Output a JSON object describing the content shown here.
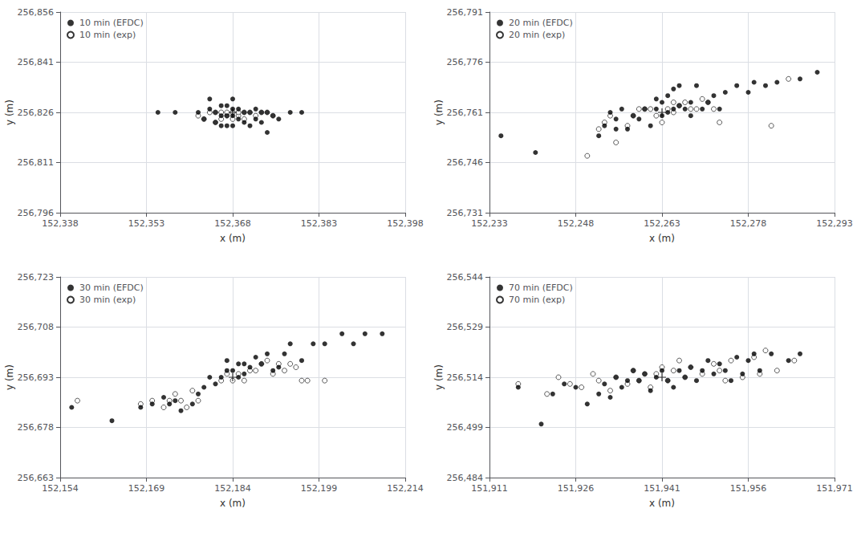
{
  "chart_data": [
    {
      "type": "scatter",
      "xlabel": "x (m)",
      "ylabel": "y (m)",
      "grid": true,
      "legend": "upper left",
      "xlim": [
        152338,
        152398
      ],
      "ylim": [
        256796,
        256856
      ],
      "xticks": [
        {
          "value": 152338,
          "label": "152,338"
        },
        {
          "value": 152353,
          "label": "152,353"
        },
        {
          "value": 152368,
          "label": "152,368"
        },
        {
          "value": 152383,
          "label": "152,383"
        },
        {
          "value": 152398,
          "label": "152,398"
        }
      ],
      "yticks": [
        {
          "value": 256796,
          "label": "256,796"
        },
        {
          "value": 256811,
          "label": "256,811"
        },
        {
          "value": 256826,
          "label": "256,826"
        },
        {
          "value": 256841,
          "label": "256,841"
        },
        {
          "value": 256856,
          "label": "256,856"
        }
      ],
      "series": [
        {
          "name": "10 min (EFDC)",
          "color": "#000000",
          "marker": "circle",
          "x": [
            152355,
            152358,
            152362,
            152363,
            152364,
            152364,
            152365,
            152365,
            152366,
            152366,
            152366,
            152367,
            152367,
            152367,
            152368,
            152368,
            152368,
            152368,
            152369,
            152369,
            152370,
            152370,
            152371,
            152371,
            152372,
            152372,
            152373,
            152373,
            152374,
            152374,
            152375,
            152376,
            152378,
            152380
          ],
          "values": [
            256826,
            256826,
            256826,
            256824,
            256827,
            256830,
            256823,
            256826,
            256822,
            256825,
            256828,
            256822,
            256825,
            256828,
            256822,
            256825,
            256827,
            256830,
            256824,
            256827,
            256823,
            256826,
            256822,
            256826,
            256824,
            256827,
            256823,
            256826,
            256820,
            256826,
            256825,
            256824,
            256826,
            256826
          ]
        },
        {
          "name": "10 min (exp)",
          "color": "#000000",
          "marker": "open circle",
          "x": [
            152362,
            152363,
            152364,
            152365,
            152365,
            152366,
            152366,
            152367,
            152367,
            152368,
            152368,
            152369,
            152369,
            152370,
            152370,
            152371,
            152372,
            152373,
            152374,
            152375
          ],
          "values": [
            256825,
            256824,
            256826,
            256823,
            256826,
            256824,
            256826,
            256825,
            256826,
            256824,
            256826,
            256825,
            256826,
            256824,
            256826,
            256826,
            256825,
            256826,
            256826,
            256825
          ]
        },
        {
          "color": "#000000",
          "marker": "+",
          "x": [
            152368
          ],
          "values": [
            256826
          ]
        }
      ]
    },
    {
      "type": "scatter",
      "xlabel": "x (m)",
      "ylabel": "y (m)",
      "grid": true,
      "legend": "upper left",
      "xlim": [
        152233,
        152293
      ],
      "ylim": [
        256731,
        256791
      ],
      "xticks": [
        {
          "value": 152233,
          "label": "152,233"
        },
        {
          "value": 152248,
          "label": "152,248"
        },
        {
          "value": 152263,
          "label": "152,263"
        },
        {
          "value": 152278,
          "label": "152,278"
        },
        {
          "value": 152293,
          "label": "152,293"
        }
      ],
      "yticks": [
        {
          "value": 256731,
          "label": "256,731"
        },
        {
          "value": 256746,
          "label": "256,746"
        },
        {
          "value": 256761,
          "label": "256,761"
        },
        {
          "value": 256776,
          "label": "256,776"
        },
        {
          "value": 256791,
          "label": "256,791"
        }
      ],
      "series": [
        {
          "name": "20 min (EFDC)",
          "color": "#000000",
          "marker": "circle",
          "x": [
            152235,
            152241,
            152252,
            152253,
            152254,
            152255,
            152255,
            152256,
            152257,
            152258,
            152259,
            152260,
            152261,
            152262,
            152262,
            152263,
            152263,
            152264,
            152264,
            152265,
            152265,
            152266,
            152266,
            152267,
            152268,
            152268,
            152269,
            152270,
            152271,
            152272,
            152273,
            152274,
            152276,
            152278,
            152279,
            152281,
            152283,
            152287,
            152290
          ],
          "values": [
            256754,
            256749,
            256754,
            256757,
            256761,
            256756,
            256759,
            256762,
            256756,
            256760,
            256759,
            256762,
            256757,
            256762,
            256765,
            256760,
            256764,
            256761,
            256766,
            256762,
            256768,
            256763,
            256769,
            256762,
            256760,
            256764,
            256769,
            256762,
            256764,
            256766,
            256762,
            256767,
            256769,
            256767,
            256770,
            256769,
            256770,
            256771,
            256773
          ]
        },
        {
          "name": "20 min (exp)",
          "color": "#000000",
          "marker": "open circle",
          "x": [
            152250,
            152252,
            152253,
            152254,
            152255,
            152257,
            152258,
            152259,
            152260,
            152261,
            152262,
            152263,
            152264,
            152265,
            152265,
            152266,
            152267,
            152268,
            152269,
            152270,
            152271,
            152272,
            152273,
            152282,
            152285
          ],
          "values": [
            256748,
            256756,
            256758,
            256760,
            256752,
            256757,
            256760,
            256762,
            256762,
            256762,
            256760,
            256758,
            256762,
            256761,
            256764,
            256763,
            256764,
            256762,
            256762,
            256765,
            256764,
            256762,
            256758,
            256757,
            256771
          ]
        },
        {
          "color": "#000000",
          "marker": "+",
          "x": [
            152263
          ],
          "values": [
            256761
          ]
        }
      ]
    },
    {
      "type": "scatter",
      "xlabel": "x (m)",
      "ylabel": "y (m)",
      "grid": true,
      "legend": "upper left",
      "xlim": [
        152154,
        152214
      ],
      "ylim": [
        256663,
        256723
      ],
      "xticks": [
        {
          "value": 152154,
          "label": "152,154"
        },
        {
          "value": 152169,
          "label": "152,169"
        },
        {
          "value": 152184,
          "label": "152,184"
        },
        {
          "value": 152199,
          "label": "152,199"
        },
        {
          "value": 152214,
          "label": "152,214"
        }
      ],
      "yticks": [
        {
          "value": 256663,
          "label": "256,663"
        },
        {
          "value": 256678,
          "label": "256,678"
        },
        {
          "value": 256693,
          "label": "256,693"
        },
        {
          "value": 256708,
          "label": "256,708"
        },
        {
          "value": 256723,
          "label": "256,723"
        }
      ],
      "series": [
        {
          "name": "30 min (EFDC)",
          "color": "#000000",
          "marker": "circle",
          "x": [
            152156,
            152163,
            152168,
            152170,
            152172,
            152173,
            152174,
            152175,
            152177,
            152178,
            152179,
            152180,
            152181,
            152182,
            152183,
            152183,
            152184,
            152185,
            152185,
            152186,
            152186,
            152187,
            152188,
            152189,
            152190,
            152191,
            152192,
            152193,
            152194,
            152196,
            152198,
            152200,
            152203,
            152205,
            152207,
            152210
          ],
          "values": [
            256684,
            256680,
            256684,
            256685,
            256687,
            256685,
            256686,
            256683,
            256685,
            256688,
            256690,
            256693,
            256691,
            256693,
            256695,
            256698,
            256695,
            256693,
            256697,
            256694,
            256697,
            256696,
            256699,
            256697,
            256700,
            256695,
            256696,
            256700,
            256703,
            256698,
            256703,
            256703,
            256706,
            256703,
            256706,
            256706
          ]
        },
        {
          "name": "30 min (exp)",
          "color": "#000000",
          "marker": "open circle",
          "x": [
            152157,
            152168,
            152170,
            152172,
            152173,
            152174,
            152175,
            152176,
            152177,
            152178,
            152182,
            152183,
            152184,
            152185,
            152186,
            152187,
            152188,
            152189,
            152190,
            152191,
            152192,
            152193,
            152194,
            152195,
            152196,
            152197,
            152200
          ],
          "values": [
            256686,
            256685,
            256686,
            256684,
            256686,
            256688,
            256686,
            256684,
            256689,
            256686,
            256692,
            256694,
            256692,
            256694,
            256692,
            256695,
            256695,
            256697,
            256698,
            256694,
            256697,
            256695,
            256697,
            256696,
            256692,
            256692,
            256692
          ]
        },
        {
          "color": "#000000",
          "marker": "+",
          "x": [
            152184
          ],
          "values": [
            256693
          ]
        }
      ]
    },
    {
      "type": "scatter",
      "xlabel": "x (m)",
      "ylabel": "y (m)",
      "grid": true,
      "legend": "upper left",
      "xlim": [
        151911,
        151971
      ],
      "ylim": [
        256484,
        256544
      ],
      "xticks": [
        {
          "value": 151911,
          "label": "151,911"
        },
        {
          "value": 151926,
          "label": "151,926"
        },
        {
          "value": 151941,
          "label": "151,941"
        },
        {
          "value": 151956,
          "label": "151,956"
        },
        {
          "value": 151971,
          "label": "151,971"
        }
      ],
      "yticks": [
        {
          "value": 256484,
          "label": "256,484"
        },
        {
          "value": 256499,
          "label": "256,499"
        },
        {
          "value": 256514,
          "label": "256,514"
        },
        {
          "value": 256529,
          "label": "256,529"
        },
        {
          "value": 256544,
          "label": "256,544"
        }
      ],
      "series": [
        {
          "name": "70 min (EFDC)",
          "color": "#000000",
          "marker": "circle",
          "x": [
            151916,
            151920,
            151922,
            151924,
            151926,
            151928,
            151930,
            151931,
            151932,
            151933,
            151934,
            151935,
            151936,
            151937,
            151938,
            151939,
            151940,
            151941,
            151942,
            151943,
            151944,
            151945,
            151946,
            151947,
            151948,
            151949,
            151950,
            151951,
            151952,
            151953,
            151954,
            151955,
            151956,
            151957,
            151958,
            151960,
            151963,
            151965
          ],
          "values": [
            256511,
            256500,
            256509,
            256512,
            256511,
            256506,
            256509,
            256512,
            256508,
            256514,
            256511,
            256513,
            256516,
            256513,
            256515,
            256510,
            256514,
            256516,
            256513,
            256511,
            256516,
            256514,
            256517,
            256513,
            256516,
            256519,
            256515,
            256518,
            256516,
            256513,
            256520,
            256515,
            256519,
            256521,
            256516,
            256521,
            256519,
            256521
          ]
        },
        {
          "name": "70 min (exp)",
          "color": "#000000",
          "marker": "open circle",
          "x": [
            151916,
            151921,
            151923,
            151925,
            151927,
            151929,
            151930,
            151932,
            151933,
            151935,
            151936,
            151937,
            151938,
            151939,
            151940,
            151941,
            151942,
            151943,
            151944,
            151945,
            151946,
            151948,
            151950,
            151951,
            151952,
            151953,
            151955,
            151957,
            151958,
            151959,
            151961,
            151964
          ],
          "values": [
            256512,
            256509,
            256514,
            256512,
            256511,
            256515,
            256513,
            256510,
            256514,
            256512,
            256516,
            256513,
            256515,
            256511,
            256515,
            256517,
            256513,
            256516,
            256519,
            256514,
            256517,
            256515,
            256518,
            256516,
            256513,
            256519,
            256514,
            256520,
            256515,
            256522,
            256516,
            256519
          ]
        },
        {
          "color": "#000000",
          "marker": "+",
          "x": [
            151941
          ],
          "values": [
            256514
          ]
        }
      ]
    }
  ]
}
